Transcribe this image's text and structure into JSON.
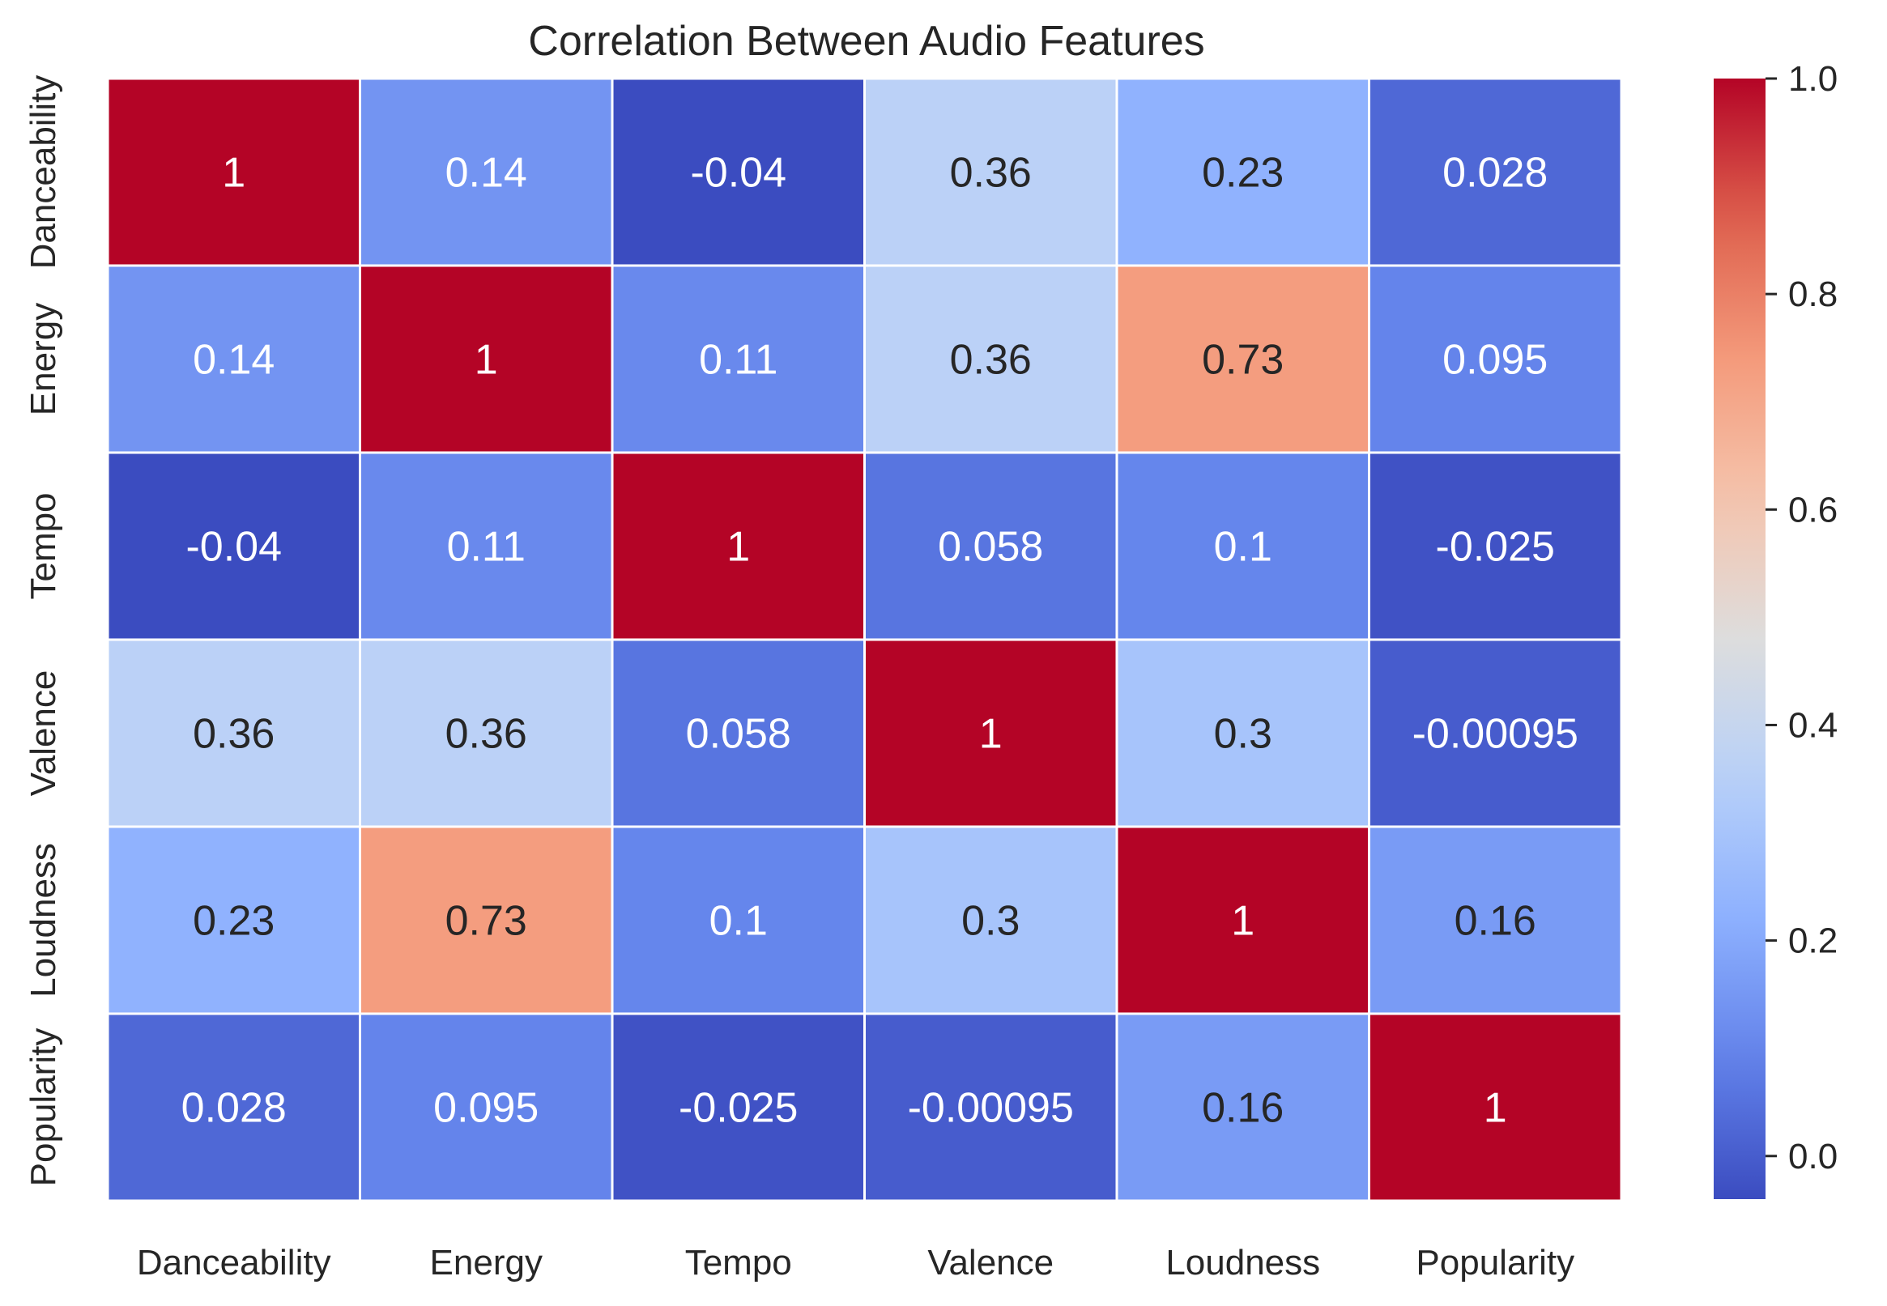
{
  "chart_data": {
    "type": "heatmap",
    "title": "Correlation Between Audio Features",
    "x_labels": [
      "Danceability",
      "Energy",
      "Tempo",
      "Valence",
      "Loudness",
      "Popularity"
    ],
    "y_labels": [
      "Danceability",
      "Energy",
      "Tempo",
      "Valence",
      "Loudness",
      "Popularity"
    ],
    "values": [
      [
        1,
        0.14,
        -0.04,
        0.36,
        0.23,
        0.028
      ],
      [
        0.14,
        1,
        0.11,
        0.36,
        0.73,
        0.095
      ],
      [
        -0.04,
        0.11,
        1,
        0.058,
        0.1,
        -0.025
      ],
      [
        0.36,
        0.36,
        0.058,
        1,
        0.3,
        -0.00095
      ],
      [
        0.23,
        0.73,
        0.1,
        0.3,
        1,
        0.16
      ],
      [
        0.028,
        0.095,
        -0.025,
        -0.00095,
        0.16,
        1
      ]
    ],
    "annotations": [
      [
        "1",
        "0.14",
        "-0.04",
        "0.36",
        "0.23",
        "0.028"
      ],
      [
        "0.14",
        "1",
        "0.11",
        "0.36",
        "0.73",
        "0.095"
      ],
      [
        "-0.04",
        "0.11",
        "1",
        "0.058",
        "0.1",
        "-0.025"
      ],
      [
        "0.36",
        "0.36",
        "0.058",
        "1",
        "0.3",
        "-0.00095"
      ],
      [
        "0.23",
        "0.73",
        "0.1",
        "0.3",
        "1",
        "0.16"
      ],
      [
        "0.028",
        "0.095",
        "-0.025",
        "-0.00095",
        "0.16",
        "1"
      ]
    ],
    "colormap": "coolwarm",
    "colorbar": {
      "vmin": -0.04,
      "vmax": 1.0,
      "ticks": [
        0.0,
        0.2,
        0.4,
        0.6,
        0.8,
        1.0
      ],
      "tick_labels": [
        "0.0",
        "0.2",
        "0.4",
        "0.6",
        "0.8",
        "1.0"
      ]
    },
    "grid_color": "#ffffff",
    "text_colors": {
      "light": "#ffffff",
      "dark": "#262626"
    }
  }
}
